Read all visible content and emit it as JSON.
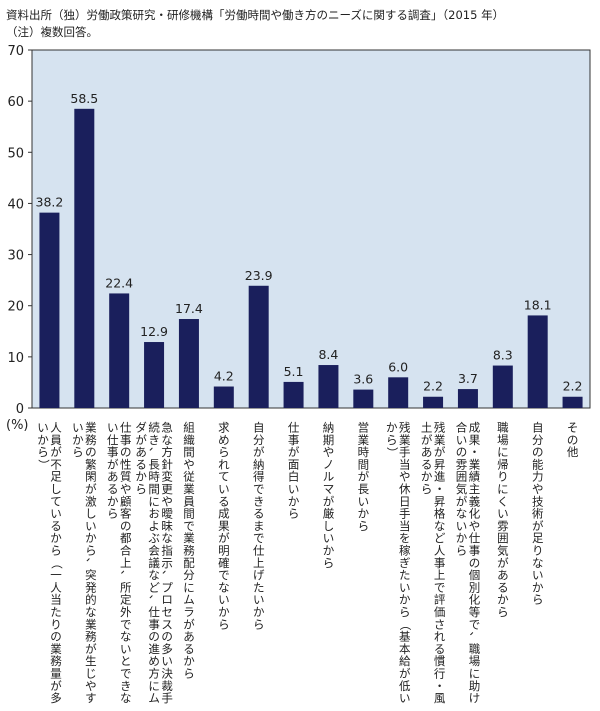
{
  "notes": {
    "source": "資料出所（独）労働政策研究・研修機構「労働時間や働き方のニーズに関する調査」（2015 年）",
    "note": "（注）複数回答。"
  },
  "chart_data": {
    "type": "bar",
    "title": "",
    "xlabel": "",
    "ylabel": "(%)",
    "ylim": [
      0,
      70
    ],
    "yticks": [
      0,
      10,
      20,
      30,
      40,
      50,
      60,
      70
    ],
    "grid": false,
    "bar_color": "#1a1f5c",
    "plot_background": "#d6e3f0",
    "categories": [
      "人員が不足しているから（一人当たりの業務量が多いから）",
      "業務の繁閑が激しいから、突発的な業務が生じやすいから",
      "仕事の性質や顧客の都合上、所定外でないとできない仕事があるから",
      "急な方針変更や曖昧な指示、プロセスの多い決裁手続き、長時間におよぶ会議など、仕事の進め方にムダがあるから",
      "組織間や従業員間で業務配分にムラがあるから",
      "求められている成果が明確でないから",
      "自分が納得できるまで仕上げたいから",
      "仕事が面白いから",
      "納期やノルマが厳しいから",
      "営業時間が長いから",
      "残業手当や休日手当を稼ぎたいから（基本給が低いから）",
      "残業が昇進・昇格など人事上で評価される慣行・風土があるから",
      "成果・業績主義化や仕事の個別化等で、職場に助け合いの雰囲気がないから",
      "職場に帰りにくい雰囲気があるから",
      "自分の能力や技術が足りないから",
      "その他"
    ],
    "values": [
      38.2,
      58.5,
      22.4,
      12.9,
      17.4,
      4.2,
      23.9,
      5.1,
      8.4,
      3.6,
      6.0,
      2.2,
      3.7,
      8.3,
      18.1,
      2.2
    ],
    "value_labels": [
      "38.2",
      "58.5",
      "22.4",
      "12.9",
      "17.4",
      "4.2",
      "23.9",
      "5.1",
      "8.4",
      "3.6",
      "6.0",
      "2.2",
      "3.7",
      "8.3",
      "18.1",
      "2.2"
    ]
  }
}
